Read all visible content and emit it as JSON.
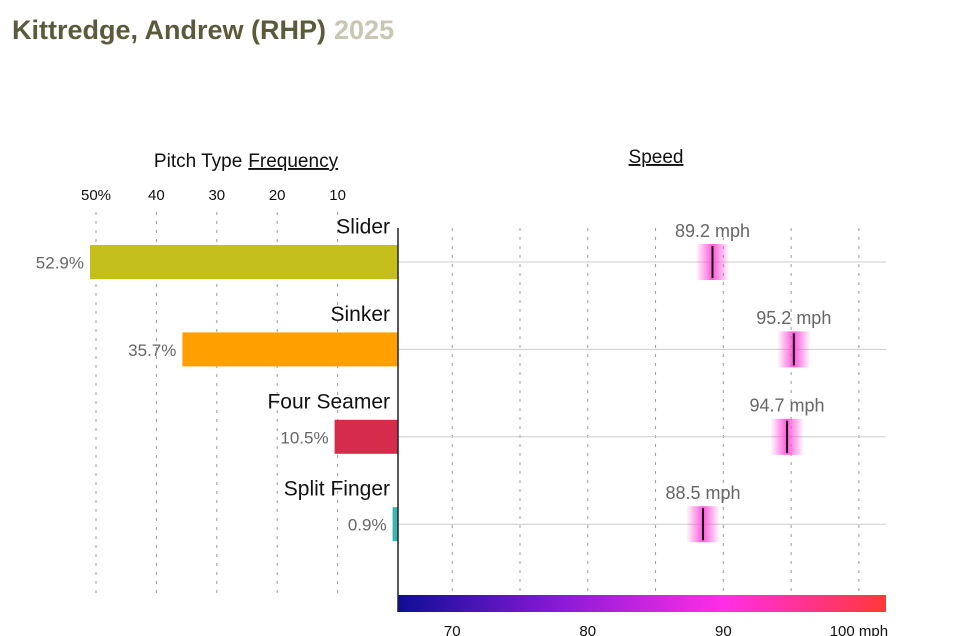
{
  "chart_data": {
    "type": "bar",
    "title": "Kittredge, Andrew (RHP)",
    "season": "2025",
    "categories": [
      "Slider",
      "Sinker",
      "Four Seamer",
      "Split Finger"
    ],
    "frequency": {
      "label": "Pitch Type",
      "label_link": "Frequency",
      "values": [
        52.9,
        35.7,
        10.5,
        0.9
      ],
      "value_labels": [
        "52.9%",
        "35.7%",
        "10.5%",
        "0.9%"
      ],
      "colors": [
        "#c5bf1b",
        "#ff9f00",
        "#d42c4a",
        "#3ab5b5"
      ],
      "xlim": [
        0,
        50
      ],
      "xticks": [
        {
          "value": 50,
          "label": "50%"
        },
        40,
        30,
        20,
        10
      ],
      "grid": true
    },
    "speed": {
      "label": "Speed",
      "values": [
        89.2,
        95.2,
        94.7,
        88.5
      ],
      "value_labels": [
        "89.2 mph",
        "95.2 mph",
        "94.7 mph",
        "88.5 mph"
      ],
      "xlim": [
        66,
        102
      ],
      "xticks": [
        70,
        80,
        90,
        {
          "value": 100,
          "label": "100 mph"
        }
      ],
      "minor_gridlines": [
        75,
        85,
        95
      ],
      "colorscale": [
        "#0e0e96",
        "#8a1ad6",
        "#ff2ee6",
        "#ff3838"
      ],
      "grid": true
    }
  }
}
